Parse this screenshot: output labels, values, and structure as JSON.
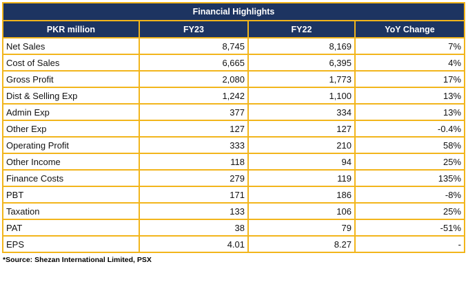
{
  "table": {
    "title": "Financial Highlights",
    "headers": [
      "PKR million",
      "FY23",
      "FY22",
      "YoY Change"
    ],
    "rows": [
      [
        "Net Sales",
        "8,745",
        "8,169",
        "7%"
      ],
      [
        "Cost of Sales",
        "6,665",
        "6,395",
        "4%"
      ],
      [
        "Gross Profit",
        "2,080",
        "1,773",
        "17%"
      ],
      [
        "Dist & Selling Exp",
        "1,242",
        "1,100",
        "13%"
      ],
      [
        "Admin Exp",
        "377",
        "334",
        "13%"
      ],
      [
        "Other Exp",
        "127",
        "127",
        "-0.4%"
      ],
      [
        "Operating Profit",
        "333",
        "210",
        "58%"
      ],
      [
        "Other Income",
        "118",
        "94",
        "25%"
      ],
      [
        "Finance Costs",
        "279",
        "119",
        "135%"
      ],
      [
        "PBT",
        "171",
        "186",
        "-8%"
      ],
      [
        "Taxation",
        "133",
        "106",
        "25%"
      ],
      [
        "PAT",
        "38",
        "79",
        "-51%"
      ],
      [
        "EPS",
        "4.01",
        "8.27",
        "-"
      ]
    ],
    "source": "*Source: Shezan International Limited, PSX"
  },
  "colors": {
    "header_bg": "#1d3461",
    "header_text": "#ffffff",
    "border": "#f2b51b"
  }
}
